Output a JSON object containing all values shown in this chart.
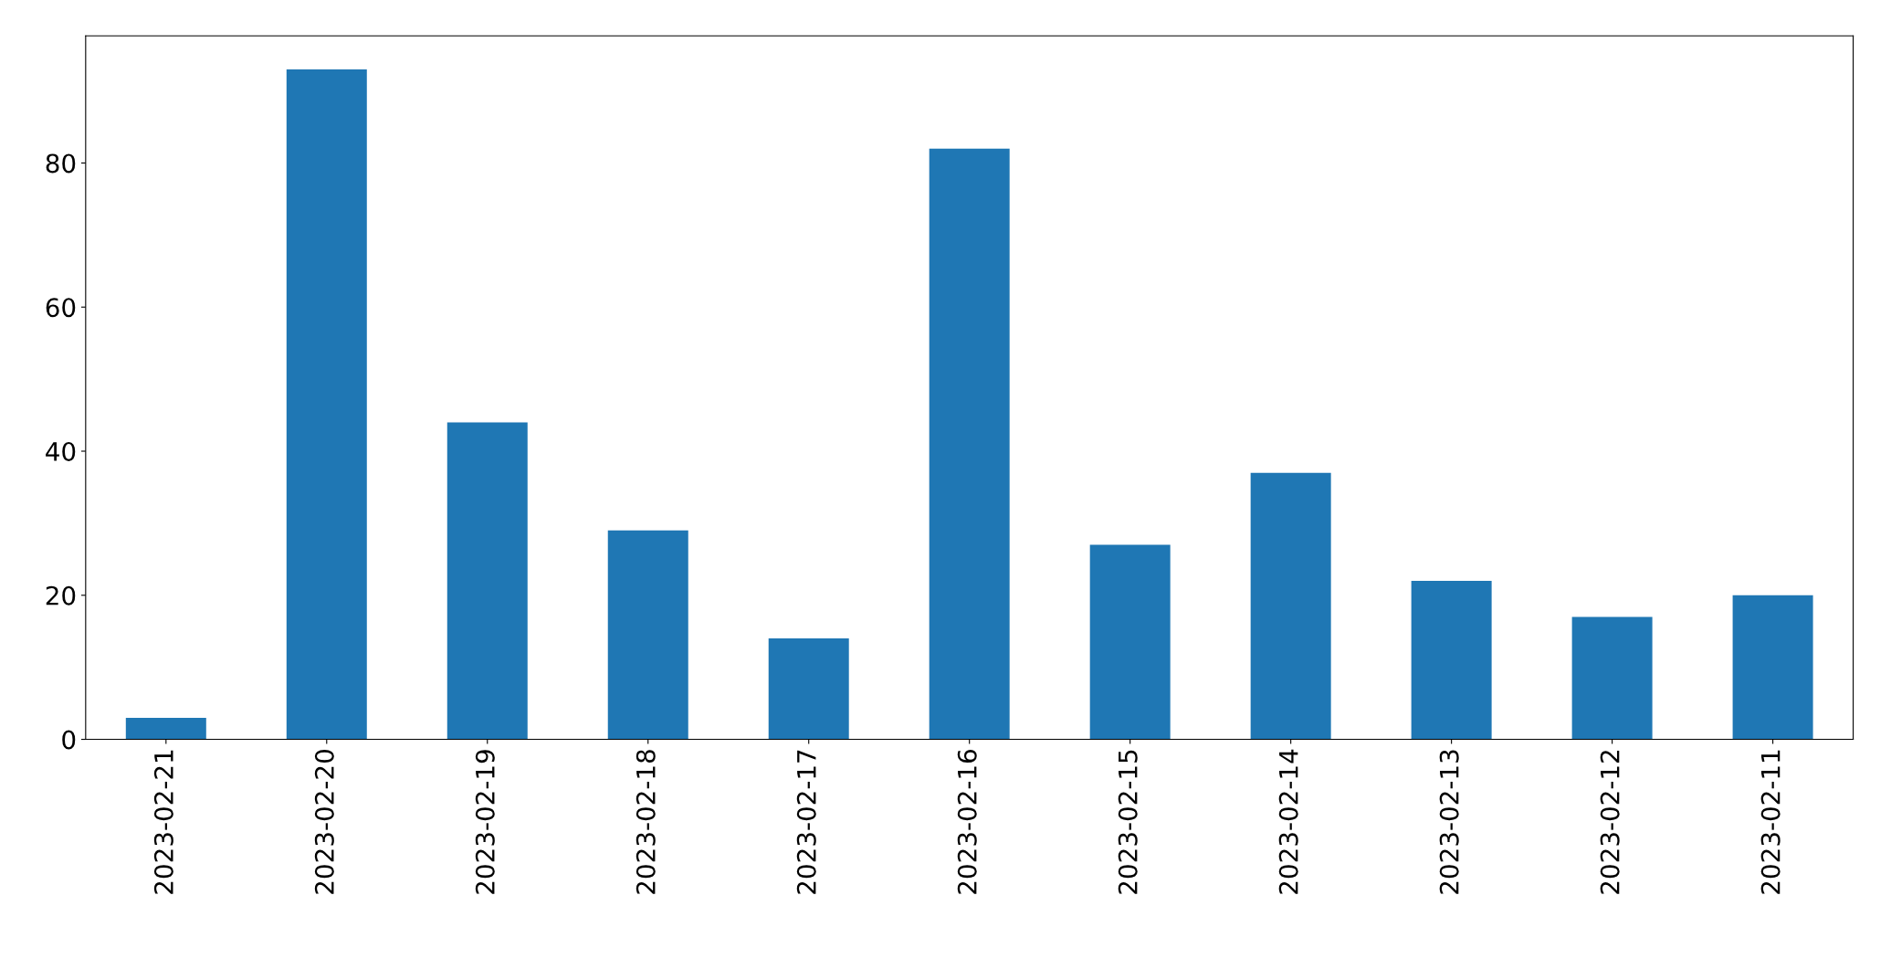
{
  "chart_data": {
    "type": "bar",
    "categories": [
      "2023-02-21",
      "2023-02-20",
      "2023-02-19",
      "2023-02-18",
      "2023-02-17",
      "2023-02-16",
      "2023-02-15",
      "2023-02-14",
      "2023-02-13",
      "2023-02-12",
      "2023-02-11"
    ],
    "values": [
      3,
      93,
      44,
      29,
      14,
      82,
      27,
      37,
      22,
      17,
      20
    ],
    "color": "#1f77b4",
    "ylim": [
      0,
      97.65
    ],
    "yticks": [
      0,
      20,
      40,
      60,
      80
    ],
    "grid": false,
    "legend": false
  }
}
